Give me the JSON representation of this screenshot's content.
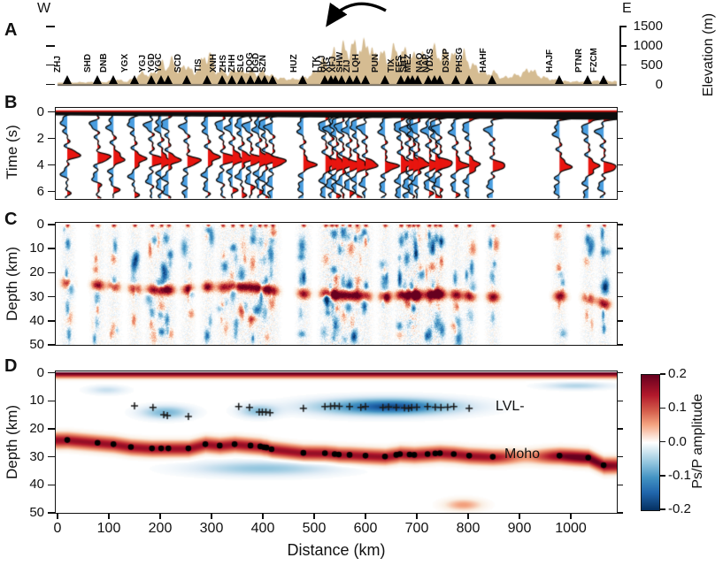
{
  "panel_letters": [
    "A",
    "B",
    "C",
    "D"
  ],
  "x_axis": {
    "label": "Distance (km)",
    "ticks": [
      0,
      100,
      200,
      300,
      400,
      500,
      600,
      700,
      800,
      900,
      1000
    ],
    "range_km": [
      0,
      1090
    ]
  },
  "colorbar": {
    "label": "Ps/P amplitude",
    "tick_labels": [
      "0.2",
      "0.1",
      "0.0",
      "-0.1",
      "-0.2"
    ],
    "vmax": 0.2,
    "vmin": -0.2
  },
  "chart_data": [
    {
      "panel": "A",
      "type": "area",
      "ylabel": "Elevation (m)",
      "yticks": [
        0,
        500,
        1000,
        1500
      ],
      "ylim": [
        0,
        1700
      ],
      "west_label": "W",
      "east_label": "E",
      "terrain_color": "#d5bc92",
      "arrow_points_to": "XFJ",
      "stations": [
        {
          "name": "ZHJ",
          "km": 19
        },
        {
          "name": "SHD",
          "km": 78
        },
        {
          "name": "DNB",
          "km": 109
        },
        {
          "name": "YGX",
          "km": 150
        },
        {
          "name": "YGJ",
          "km": 184
        },
        {
          "name": "YGD",
          "km": 202
        },
        {
          "name": "YGC",
          "km": 216
        },
        {
          "name": "SCD",
          "km": 253
        },
        {
          "name": "TIS",
          "km": 293
        },
        {
          "name": "XNH",
          "km": 322
        },
        {
          "name": "ZHS",
          "km": 341
        },
        {
          "name": "ZHH",
          "km": 359
        },
        {
          "name": "SLG",
          "km": 376
        },
        {
          "name": "DOG",
          "km": 393
        },
        {
          "name": "DGD",
          "km": 405
        },
        {
          "name": "SZN",
          "km": 419
        },
        {
          "name": "HUZ",
          "km": 479
        },
        {
          "name": "LTK",
          "km": 522
        },
        {
          "name": "HYJ",
          "km": 534
        },
        {
          "name": "XIG",
          "km": 543
        },
        {
          "name": "XFJ",
          "km": 555
        },
        {
          "name": "SHW",
          "km": 569
        },
        {
          "name": "ZIJ",
          "km": 583
        },
        {
          "name": "LQH",
          "km": 600
        },
        {
          "name": "PUN",
          "km": 638
        },
        {
          "name": "TIX",
          "km": 669
        },
        {
          "name": "FES",
          "km": 684
        },
        {
          "name": "SHT",
          "km": 693
        },
        {
          "name": "MEZ",
          "km": 702
        },
        {
          "name": "NAO",
          "km": 724
        },
        {
          "name": "NAP",
          "km": 736
        },
        {
          "name": "YDXS",
          "km": 745
        },
        {
          "name": "DSXP",
          "km": 776
        },
        {
          "name": "PHSG",
          "km": 802
        },
        {
          "name": "HAHF",
          "km": 848
        },
        {
          "name": "HAJF",
          "km": 978
        },
        {
          "name": "PTNR",
          "km": 1034
        },
        {
          "name": "FZCM",
          "km": 1064
        }
      ],
      "elevation_profile": [
        [
          0,
          40
        ],
        [
          40,
          55
        ],
        [
          90,
          60
        ],
        [
          110,
          130
        ],
        [
          130,
          70
        ],
        [
          150,
          180
        ],
        [
          165,
          320
        ],
        [
          175,
          210
        ],
        [
          190,
          380
        ],
        [
          200,
          560
        ],
        [
          210,
          420
        ],
        [
          222,
          650
        ],
        [
          232,
          320
        ],
        [
          248,
          520
        ],
        [
          262,
          260
        ],
        [
          283,
          690
        ],
        [
          295,
          760
        ],
        [
          305,
          320
        ],
        [
          318,
          360
        ],
        [
          330,
          260
        ],
        [
          345,
          420
        ],
        [
          357,
          300
        ],
        [
          370,
          360
        ],
        [
          383,
          260
        ],
        [
          397,
          320
        ],
        [
          412,
          220
        ],
        [
          428,
          160
        ],
        [
          452,
          130
        ],
        [
          472,
          160
        ],
        [
          490,
          220
        ],
        [
          505,
          420
        ],
        [
          515,
          620
        ],
        [
          525,
          520
        ],
        [
          535,
          820
        ],
        [
          545,
          720
        ],
        [
          555,
          960
        ],
        [
          565,
          820
        ],
        [
          576,
          1010
        ],
        [
          588,
          860
        ],
        [
          600,
          1100
        ],
        [
          612,
          720
        ],
        [
          625,
          830
        ],
        [
          640,
          620
        ],
        [
          653,
          910
        ],
        [
          665,
          730
        ],
        [
          678,
          860
        ],
        [
          690,
          660
        ],
        [
          702,
          820
        ],
        [
          714,
          620
        ],
        [
          728,
          900
        ],
        [
          742,
          720
        ],
        [
          758,
          820
        ],
        [
          774,
          660
        ],
        [
          788,
          760
        ],
        [
          800,
          520
        ],
        [
          814,
          420
        ],
        [
          830,
          260
        ],
        [
          848,
          310
        ],
        [
          862,
          160
        ],
        [
          880,
          210
        ],
        [
          900,
          260
        ],
        [
          918,
          410
        ],
        [
          934,
          220
        ],
        [
          950,
          160
        ],
        [
          975,
          90
        ],
        [
          1000,
          70
        ],
        [
          1030,
          80
        ],
        [
          1064,
          100
        ],
        [
          1090,
          70
        ]
      ]
    },
    {
      "panel": "B",
      "type": "line",
      "ylabel": "Time (s)",
      "yticks": [
        0,
        2,
        4,
        6
      ],
      "ylim": [
        0,
        6.5
      ],
      "positive_color": "#e8150f",
      "negative_color": "#4a9ee0",
      "traces": [
        [
          19,
          3.3
        ],
        [
          78,
          3.44
        ],
        [
          109,
          3.51
        ],
        [
          150,
          3.64
        ],
        [
          184,
          3.71
        ],
        [
          202,
          3.71
        ],
        [
          216,
          3.71
        ],
        [
          253,
          3.71
        ],
        [
          293,
          3.51
        ],
        [
          322,
          3.58
        ],
        [
          341,
          3.51
        ],
        [
          359,
          3.58
        ],
        [
          376,
          3.58
        ],
        [
          393,
          3.62
        ],
        [
          405,
          3.67
        ],
        [
          419,
          3.77
        ],
        [
          479,
          3.95
        ],
        [
          522,
          3.95
        ],
        [
          534,
          3.97
        ],
        [
          543,
          3.99
        ],
        [
          555,
          4.0
        ],
        [
          569,
          4.03
        ],
        [
          583,
          4.04
        ],
        [
          600,
          4.07
        ],
        [
          638,
          4.11
        ],
        [
          669,
          4.02
        ],
        [
          684,
          4.03
        ],
        [
          693,
          4.03
        ],
        [
          702,
          4.02
        ],
        [
          724,
          3.99
        ],
        [
          736,
          3.95
        ],
        [
          745,
          3.95
        ],
        [
          776,
          4.0
        ],
        [
          802,
          4.07
        ],
        [
          848,
          4.13
        ],
        [
          978,
          4.07
        ],
        [
          1034,
          4.17
        ],
        [
          1064,
          4.25
        ]
      ]
    },
    {
      "panel": "C",
      "type": "heatmap",
      "ylabel": "Depth (km)",
      "yticks": [
        0,
        10,
        20,
        30,
        40,
        50
      ],
      "ylim": [
        0,
        50
      ],
      "cmap": "RdBu"
    },
    {
      "panel": "D",
      "type": "heatmap",
      "ylabel": "Depth (km)",
      "yticks": [
        0,
        10,
        20,
        30,
        40,
        50
      ],
      "ylim": [
        0,
        50
      ],
      "cmap": "RdBu",
      "lvl_label": "LVL-",
      "moho_label": "Moho",
      "surface_band_amplitude": 0.2,
      "moho_band_amplitude": 0.17,
      "moho_points_km": [
        [
          19,
          24
        ],
        [
          78,
          25
        ],
        [
          109,
          25.5
        ],
        [
          143,
          26.5
        ],
        [
          184,
          27
        ],
        [
          202,
          27
        ],
        [
          216,
          27
        ],
        [
          255,
          27
        ],
        [
          288,
          25.5
        ],
        [
          316,
          26
        ],
        [
          345,
          25.5
        ],
        [
          376,
          26
        ],
        [
          395,
          26.3
        ],
        [
          402,
          26.6
        ],
        [
          407,
          26.7
        ],
        [
          417,
          27.3
        ],
        [
          479,
          28.6
        ],
        [
          521,
          28.7
        ],
        [
          540,
          29
        ],
        [
          548,
          29.2
        ],
        [
          569,
          29.3
        ],
        [
          600,
          29.6
        ],
        [
          638,
          29.9
        ],
        [
          660,
          29.3
        ],
        [
          667,
          29
        ],
        [
          686,
          29.2
        ],
        [
          695,
          29.3
        ],
        [
          721,
          29
        ],
        [
          736,
          28.8
        ],
        [
          745,
          28.7
        ],
        [
          772,
          29
        ],
        [
          802,
          29.6
        ],
        [
          848,
          30
        ],
        [
          978,
          29.6
        ],
        [
          1034,
          30.3
        ],
        [
          1064,
          33
        ]
      ],
      "lvl_points_km": [
        [
          150,
          11.8
        ],
        [
          186,
          12.4
        ],
        [
          207,
          15
        ],
        [
          214,
          15.3
        ],
        [
          255,
          15.6
        ],
        [
          353,
          12.1
        ],
        [
          374,
          12.4
        ],
        [
          393,
          14
        ],
        [
          399,
          14
        ],
        [
          406,
          14
        ],
        [
          414,
          14.3
        ],
        [
          479,
          12.7
        ],
        [
          521,
          12.1
        ],
        [
          532,
          12
        ],
        [
          540,
          11.8
        ],
        [
          549,
          12
        ],
        [
          569,
          12.1
        ],
        [
          591,
          12.4
        ],
        [
          600,
          12.1
        ],
        [
          634,
          12.4
        ],
        [
          645,
          12.2
        ],
        [
          660,
          12.4
        ],
        [
          676,
          12.5
        ],
        [
          684,
          12.7
        ],
        [
          690,
          12.4
        ],
        [
          700,
          12.3
        ],
        [
          721,
          12.1
        ],
        [
          736,
          12.3
        ],
        [
          747,
          12.4
        ],
        [
          760,
          12.3
        ],
        [
          772,
          12.1
        ],
        [
          802,
          12.7
        ]
      ],
      "negative_anomalies": [
        [
          210,
          14,
          45,
          2.2,
          -0.07
        ],
        [
          390,
          13.5,
          35,
          2.2,
          -0.06
        ],
        [
          640,
          12,
          130,
          2.8,
          -0.13
        ],
        [
          655,
          12,
          60,
          1.8,
          -0.05
        ],
        [
          400,
          34,
          130,
          2.5,
          -0.055
        ],
        [
          1010,
          4.5,
          60,
          1.3,
          -0.04
        ],
        [
          95,
          6,
          35,
          1.5,
          -0.03
        ]
      ],
      "positive_anomalies": [
        [
          790,
          47,
          35,
          2,
          0.06
        ]
      ]
    }
  ]
}
